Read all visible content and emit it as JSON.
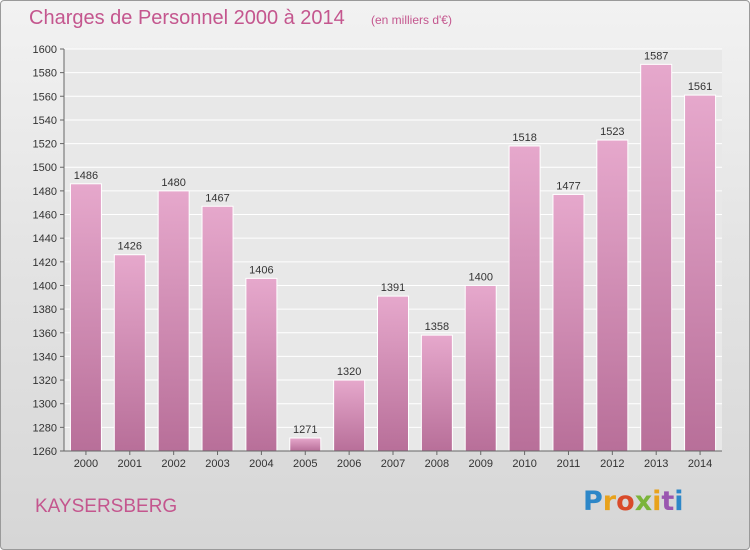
{
  "header": {
    "title": "Charges de Personnel 2000 à 2014",
    "subtitle": "(en milliers d'€)"
  },
  "footer": {
    "commune": "KAYSERSBERG",
    "logo": {
      "letters": [
        "P",
        "r",
        "o",
        "x",
        "i",
        "t",
        "i"
      ]
    }
  },
  "colors": {
    "title": "#c4568e",
    "bar_top": "#e6a8cc",
    "bar_bottom": "#b86f99",
    "plot_bg": "#e8e8e8",
    "grid": "#ffffff"
  },
  "chart_data": {
    "type": "bar",
    "title": "Charges de Personnel 2000 à 2014",
    "subtitle": "(en milliers d'€)",
    "categories": [
      "2000",
      "2001",
      "2002",
      "2003",
      "2004",
      "2005",
      "2006",
      "2007",
      "2008",
      "2009",
      "2010",
      "2011",
      "2012",
      "2013",
      "2014"
    ],
    "values": [
      1486,
      1426,
      1480,
      1467,
      1406,
      1271,
      1320,
      1391,
      1358,
      1400,
      1518,
      1477,
      1523,
      1587,
      1561
    ],
    "ylim": [
      1260,
      1600
    ],
    "yticks": [
      1260,
      1280,
      1300,
      1320,
      1340,
      1360,
      1380,
      1400,
      1420,
      1440,
      1460,
      1480,
      1500,
      1520,
      1540,
      1560,
      1580,
      1600
    ],
    "grid": true,
    "data_labels": true
  }
}
